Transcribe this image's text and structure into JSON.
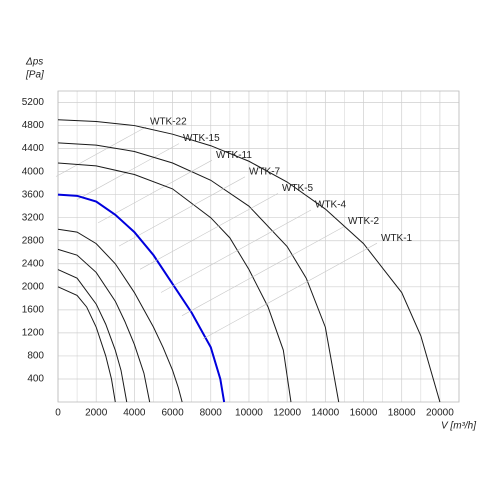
{
  "chart_data": {
    "type": "line",
    "y_label": "Δps",
    "y_unit": "[Pa]",
    "x_label": "V [m³/h]",
    "xlim": [
      0,
      21000
    ],
    "ylim": [
      0,
      5400
    ],
    "xticks": [
      0,
      2000,
      4000,
      6000,
      8000,
      10000,
      12000,
      14000,
      16000,
      18000,
      20000
    ],
    "yticks": [
      400,
      800,
      1200,
      1600,
      2000,
      2400,
      2800,
      3200,
      3600,
      4000,
      4400,
      4800,
      5200
    ],
    "grid": true,
    "series": [
      {
        "name": "WTK-22",
        "color": "#1a1a1a",
        "x": [
          0,
          2000,
          4000,
          6000,
          8000,
          10000,
          12000,
          14000,
          16000,
          18000,
          19000,
          20000
        ],
        "values": [
          4900,
          4870,
          4800,
          4650,
          4450,
          4180,
          3820,
          3350,
          2750,
          1900,
          1150,
          0
        ]
      },
      {
        "name": "WTK-15",
        "color": "#1a1a1a",
        "x": [
          0,
          2000,
          4000,
          6000,
          8000,
          10000,
          12000,
          13000,
          14000,
          14700
        ],
        "values": [
          4500,
          4460,
          4350,
          4150,
          3850,
          3400,
          2700,
          2150,
          1300,
          0
        ]
      },
      {
        "name": "WTK-11",
        "color": "#1a1a1a",
        "x": [
          0,
          2000,
          4000,
          6000,
          8000,
          9000,
          10000,
          11000,
          11800,
          12200
        ],
        "values": [
          4150,
          4100,
          3950,
          3700,
          3200,
          2850,
          2300,
          1650,
          900,
          0
        ]
      },
      {
        "name": "WTK-7",
        "color": "#0000dd",
        "x": [
          0,
          1000,
          2000,
          3000,
          4000,
          5000,
          6000,
          7000,
          8000,
          8500,
          8700
        ],
        "values": [
          3600,
          3580,
          3480,
          3250,
          2950,
          2550,
          2050,
          1550,
          950,
          400,
          0
        ]
      },
      {
        "name": "WTK-5",
        "color": "#1a1a1a",
        "x": [
          0,
          1000,
          2000,
          3000,
          4000,
          5000,
          5500,
          6000,
          6300,
          6500
        ],
        "values": [
          3000,
          2950,
          2750,
          2400,
          1900,
          1300,
          950,
          550,
          250,
          0
        ]
      },
      {
        "name": "WTK-4",
        "color": "#1a1a1a",
        "x": [
          0,
          1000,
          2000,
          3000,
          3500,
          4000,
          4500,
          4800
        ],
        "values": [
          2650,
          2550,
          2250,
          1750,
          1400,
          1000,
          500,
          0
        ]
      },
      {
        "name": "WTK-2",
        "color": "#1a1a1a",
        "x": [
          0,
          1000,
          2000,
          2500,
          3000,
          3300,
          3600
        ],
        "values": [
          2300,
          2150,
          1700,
          1350,
          900,
          550,
          0
        ]
      },
      {
        "name": "WTK-1",
        "color": "#1a1a1a",
        "x": [
          0,
          1000,
          1500,
          2000,
          2500,
          2800,
          3000
        ],
        "values": [
          2000,
          1850,
          1650,
          1300,
          800,
          400,
          0
        ]
      }
    ]
  }
}
